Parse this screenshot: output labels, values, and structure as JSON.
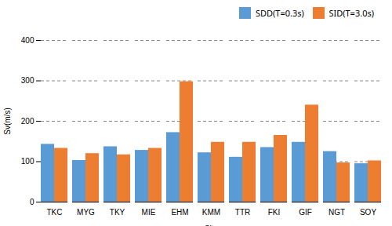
{
  "chart_data": {
    "type": "bar",
    "xlabel": "Site",
    "ylabel": "Sv(m/s)",
    "categories": [
      "TKC",
      "MYG",
      "TKY",
      "MIE",
      "EHM",
      "KMM",
      "TTR",
      "FKI",
      "GIF",
      "NGT",
      "SOY"
    ],
    "series": [
      {
        "name": "SDD(T=0.3s)",
        "color": "#5b9bd5",
        "values": [
          143,
          103,
          137,
          128,
          172,
          122,
          111,
          135,
          148,
          125,
          95
        ]
      },
      {
        "name": "SID(T=3.0s)",
        "color": "#ed7d31",
        "values": [
          133,
          120,
          117,
          133,
          298,
          148,
          148,
          165,
          240,
          97,
          102
        ]
      }
    ],
    "ylim": [
      0,
      400
    ],
    "yticks": [
      0,
      100,
      200,
      300,
      400
    ],
    "grid": true,
    "legend": "upper right"
  }
}
